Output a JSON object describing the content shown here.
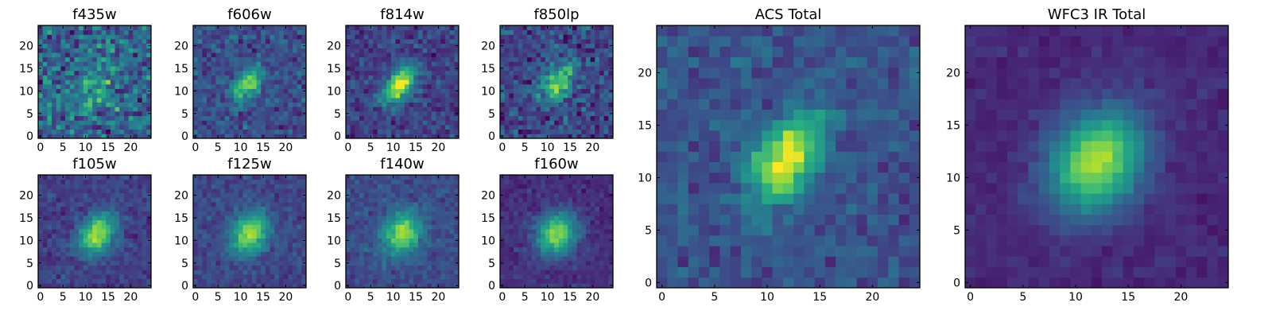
{
  "figure": {
    "background": "#ffffff",
    "colormap": "viridis",
    "grid_size": 25
  },
  "chart_data": [
    {
      "type": "heatmap",
      "title": "f435w",
      "xlim": [
        0,
        24
      ],
      "ylim": [
        0,
        24
      ],
      "xticks": [
        0,
        5,
        10,
        15,
        20
      ],
      "yticks": [
        0,
        5,
        10,
        15,
        20
      ],
      "source": {
        "cx": 12.0,
        "cy": 11.5,
        "sigma": 3.5,
        "amp": 0.22,
        "noise": 0.28,
        "elong": 1.2,
        "base": 0.32,
        "seed": 11
      }
    },
    {
      "type": "heatmap",
      "title": "f606w",
      "xlim": [
        0,
        24
      ],
      "ylim": [
        0,
        24
      ],
      "xticks": [
        0,
        5,
        10,
        15,
        20
      ],
      "yticks": [
        0,
        5,
        10,
        15,
        20
      ],
      "source": {
        "cx": 11.5,
        "cy": 11.5,
        "sigma": 1.8,
        "amp": 0.55,
        "noise": 0.16,
        "elong": 1.5,
        "base": 0.25,
        "seed": 23
      }
    },
    {
      "type": "heatmap",
      "title": "f814w",
      "xlim": [
        0,
        24
      ],
      "ylim": [
        0,
        24
      ],
      "xticks": [
        0,
        5,
        10,
        15,
        20
      ],
      "yticks": [
        0,
        5,
        10,
        15,
        20
      ],
      "source": {
        "cx": 11.5,
        "cy": 11.5,
        "sigma": 1.9,
        "amp": 0.75,
        "noise": 0.15,
        "elong": 1.7,
        "base": 0.2,
        "seed": 37
      }
    },
    {
      "type": "heatmap",
      "title": "f850lp",
      "xlim": [
        0,
        24
      ],
      "ylim": [
        0,
        24
      ],
      "xticks": [
        0,
        5,
        10,
        15,
        20
      ],
      "yticks": [
        0,
        5,
        10,
        15,
        20
      ],
      "source": {
        "cx": 12.5,
        "cy": 12.0,
        "sigma": 2.0,
        "amp": 0.6,
        "noise": 0.2,
        "elong": 1.6,
        "base": 0.22,
        "seed": 51
      }
    },
    {
      "type": "heatmap",
      "title": "f105w",
      "xlim": [
        0,
        24
      ],
      "ylim": [
        0,
        24
      ],
      "xticks": [
        0,
        5,
        10,
        15,
        20
      ],
      "yticks": [
        0,
        5,
        10,
        15,
        20
      ],
      "source": {
        "cx": 12.5,
        "cy": 11.5,
        "sigma": 2.4,
        "amp": 0.7,
        "noise": 0.1,
        "elong": 1.4,
        "base": 0.2,
        "seed": 67
      }
    },
    {
      "type": "heatmap",
      "title": "f125w",
      "xlim": [
        0,
        24
      ],
      "ylim": [
        0,
        24
      ],
      "xticks": [
        0,
        5,
        10,
        15,
        20
      ],
      "yticks": [
        0,
        5,
        10,
        15,
        20
      ],
      "source": {
        "cx": 12.0,
        "cy": 11.5,
        "sigma": 2.6,
        "amp": 0.65,
        "noise": 0.1,
        "elong": 1.3,
        "base": 0.22,
        "seed": 79
      }
    },
    {
      "type": "heatmap",
      "title": "f140w",
      "xlim": [
        0,
        24
      ],
      "ylim": [
        0,
        24
      ],
      "xticks": [
        0,
        5,
        10,
        15,
        20
      ],
      "yticks": [
        0,
        5,
        10,
        15,
        20
      ],
      "source": {
        "cx": 12.0,
        "cy": 11.5,
        "sigma": 2.8,
        "amp": 0.62,
        "noise": 0.1,
        "elong": 1.2,
        "base": 0.24,
        "seed": 91
      }
    },
    {
      "type": "heatmap",
      "title": "f160w",
      "xlim": [
        0,
        24
      ],
      "ylim": [
        0,
        24
      ],
      "xticks": [
        0,
        5,
        10,
        15,
        20
      ],
      "yticks": [
        0,
        5,
        10,
        15,
        20
      ],
      "source": {
        "cx": 12.0,
        "cy": 11.5,
        "sigma": 2.9,
        "amp": 0.7,
        "noise": 0.08,
        "elong": 1.2,
        "base": 0.14,
        "seed": 103
      }
    },
    {
      "type": "heatmap",
      "title": "ACS Total",
      "xlim": [
        0,
        24
      ],
      "ylim": [
        0,
        24
      ],
      "xticks": [
        0,
        5,
        10,
        15,
        20
      ],
      "yticks": [
        0,
        5,
        10,
        15,
        20
      ],
      "source": {
        "cx": 11.8,
        "cy": 11.8,
        "sigma": 1.9,
        "amp": 0.72,
        "noise": 0.12,
        "elong": 1.7,
        "base": 0.26,
        "seed": 131
      }
    },
    {
      "type": "heatmap",
      "title": "WFC3 IR Total",
      "xlim": [
        0,
        24
      ],
      "ylim": [
        0,
        24
      ],
      "xticks": [
        0,
        5,
        10,
        15,
        20
      ],
      "yticks": [
        0,
        5,
        10,
        15,
        20
      ],
      "source": {
        "cx": 12.0,
        "cy": 11.5,
        "sigma": 2.9,
        "amp": 0.76,
        "noise": 0.05,
        "elong": 1.25,
        "base": 0.12,
        "seed": 157
      }
    }
  ]
}
